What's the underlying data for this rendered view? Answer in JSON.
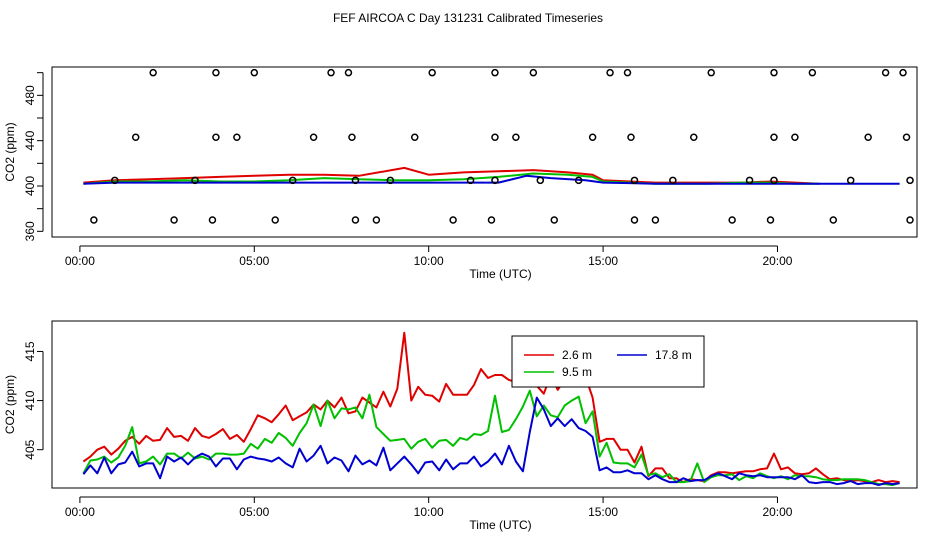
{
  "title": "FEF AIRCOA C  Day 131231  Calibrated Timeseries",
  "colors": {
    "red": "#e00000",
    "green": "#00c000",
    "blue": "#0000d0",
    "black": "#000000"
  },
  "chart_data": [
    {
      "type": "line",
      "name": "top-panel",
      "xlabel": "Time (UTC)",
      "ylabel": "CO2 (ppm)",
      "xlim": [
        -0.8,
        24.0
      ],
      "ylim": [
        355,
        505
      ],
      "x_ticks": [
        0,
        5,
        10,
        15,
        20
      ],
      "x_tick_labels": [
        "00:00",
        "05:00",
        "10:00",
        "15:00",
        "20:00"
      ],
      "y_ticks": [
        360,
        400,
        440,
        480
      ],
      "y_tick_labels": [
        "360",
        "400",
        "440",
        "480"
      ],
      "extra_y_ticks": [
        380,
        420,
        460,
        500
      ],
      "series": [
        {
          "name": "2.6 m",
          "color": "red",
          "x": [
            0.1,
            1.0,
            2.0,
            3.0,
            4.0,
            5.0,
            6.0,
            7.0,
            8.0,
            9.3,
            10.0,
            11.0,
            12.0,
            13.0,
            14.0,
            14.7,
            15.0,
            16.5,
            18.0,
            19.0,
            19.8,
            20.5,
            21.2
          ],
          "values": [
            403,
            405,
            406,
            407,
            408,
            409,
            410,
            410,
            409,
            416,
            410,
            412,
            413,
            414,
            412,
            410,
            405,
            403,
            403,
            403,
            404,
            403,
            402
          ]
        },
        {
          "name": "9.5 m",
          "color": "green",
          "x": [
            0.1,
            1.0,
            2.0,
            3.0,
            4.0,
            5.0,
            6.0,
            7.0,
            8.0,
            9.0,
            10.0,
            11.0,
            12.0,
            13.0,
            14.0,
            14.7,
            15.0,
            16.5,
            18.0,
            19.0,
            19.8,
            20.5,
            21.2
          ],
          "values": [
            402,
            404,
            404,
            405,
            404,
            404,
            405,
            407,
            406,
            405,
            405,
            406,
            408,
            411,
            410,
            408,
            404,
            402,
            402,
            403,
            403,
            402,
            402
          ]
        },
        {
          "name": "17.8 m",
          "color": "blue",
          "x": [
            0.1,
            1.0,
            2.0,
            3.0,
            4.0,
            5.0,
            6.0,
            7.0,
            8.0,
            9.0,
            10.0,
            11.0,
            12.0,
            12.8,
            13.5,
            14.5,
            15.0,
            16.5,
            18.0,
            19.0,
            20.0,
            21.0,
            22.0,
            23.5
          ],
          "values": [
            402,
            403,
            403,
            403,
            403,
            403,
            403,
            403,
            403,
            403,
            403,
            403,
            403,
            409,
            407,
            405,
            403,
            402,
            402,
            402,
            402,
            402,
            402,
            402
          ]
        }
      ],
      "calibration_points": {
        "name": "calibration standards",
        "x": [
          0.4,
          2.7,
          3.8,
          5.6,
          7.9,
          8.5,
          10.7,
          11.8,
          13.6,
          15.9,
          16.5,
          18.7,
          19.8,
          21.6,
          23.8,
          1.0,
          3.3,
          6.1,
          7.9,
          8.9,
          11.2,
          11.9,
          13.2,
          14.3,
          15.9,
          17.0,
          19.2,
          19.9,
          22.1,
          23.8,
          1.6,
          3.9,
          4.5,
          6.7,
          7.8,
          9.6,
          11.9,
          12.5,
          14.7,
          15.8,
          17.6,
          19.9,
          20.5,
          22.6,
          23.7,
          2.1,
          3.9,
          5.0,
          7.2,
          7.7,
          10.1,
          11.9,
          13.0,
          15.2,
          15.7,
          18.1,
          19.9,
          21.0,
          23.1,
          23.6
        ],
        "values": [
          370,
          370,
          370,
          370,
          370,
          370,
          370,
          370,
          370,
          370,
          370,
          370,
          370,
          370,
          370,
          405,
          405,
          405,
          405,
          405,
          405,
          405,
          405,
          405,
          405,
          405,
          405,
          405,
          405,
          405,
          443,
          443,
          443,
          443,
          443,
          443,
          443,
          443,
          443,
          443,
          443,
          443,
          443,
          443,
          443,
          500,
          500,
          500,
          500,
          500,
          500,
          500,
          500,
          500,
          500,
          500,
          500,
          500,
          500,
          500
        ]
      }
    },
    {
      "type": "line",
      "name": "bottom-panel",
      "xlabel": "Time (UTC)",
      "ylabel": "CO2 (ppm)",
      "xlim": [
        -0.8,
        24.0
      ],
      "ylim": [
        401.1,
        418.1
      ],
      "x_ticks": [
        0,
        5,
        10,
        15,
        20
      ],
      "x_tick_labels": [
        "00:00",
        "05:00",
        "10:00",
        "15:00",
        "20:00"
      ],
      "y_ticks": [
        405,
        410,
        415
      ],
      "y_tick_labels": [
        "405",
        "410",
        "415"
      ],
      "legend": {
        "position": "top-right-inset",
        "entries": [
          "2.6 m",
          "9.5 m",
          "17.8 m"
        ]
      },
      "series": [
        {
          "name": "2.6 m",
          "color": "red",
          "x": [
            0.1,
            0.3,
            0.5,
            0.7,
            0.9,
            1.1,
            1.3,
            1.5,
            1.7,
            1.9,
            2.1,
            2.3,
            2.5,
            2.7,
            2.9,
            3.1,
            3.3,
            3.5,
            3.7,
            3.9,
            4.1,
            4.3,
            4.5,
            4.7,
            4.9,
            5.1,
            5.3,
            5.5,
            5.7,
            5.9,
            6.1,
            6.3,
            6.5,
            6.7,
            6.9,
            7.1,
            7.3,
            7.5,
            7.7,
            7.9,
            8.1,
            8.3,
            8.5,
            8.7,
            8.9,
            9.1,
            9.3,
            9.5,
            9.7,
            9.9,
            10.1,
            10.3,
            10.5,
            10.7,
            10.9,
            11.1,
            11.3,
            11.5,
            11.7,
            11.9,
            12.1,
            12.3,
            12.5,
            12.7,
            12.9,
            13.1,
            13.3,
            13.5,
            13.7,
            13.9,
            14.1,
            14.3,
            14.5,
            14.7,
            14.9,
            15.1,
            15.3,
            15.5,
            15.7,
            15.9,
            16.1,
            16.3,
            16.5,
            16.7,
            16.9,
            17.1,
            17.3,
            17.5,
            17.7,
            17.9,
            18.1,
            18.3,
            18.5,
            18.7,
            18.9,
            19.1,
            19.3,
            19.5,
            19.7,
            19.9,
            20.1,
            20.3,
            20.5,
            20.7,
            20.9,
            21.1,
            21.3,
            21.5,
            21.7,
            21.9,
            22.1,
            22.3,
            22.5,
            22.7,
            22.9,
            23.1,
            23.3,
            23.5
          ],
          "values": [
            403.8,
            404.3,
            405.0,
            405.3,
            404.5,
            405.1,
            405.9,
            406.3,
            405.6,
            406.4,
            405.9,
            406.0,
            407.2,
            406.3,
            406.4,
            405.9,
            407.2,
            406.4,
            406.2,
            406.6,
            407.1,
            406.1,
            406.5,
            405.8,
            407.1,
            408.5,
            408.2,
            407.8,
            408.6,
            409.5,
            408.0,
            408.4,
            408.8,
            409.6,
            409.1,
            410.0,
            409.3,
            410.3,
            408.7,
            408.9,
            410.3,
            409.8,
            409.3,
            410.9,
            409.4,
            411.2,
            416.9,
            410.0,
            411.4,
            410.6,
            410.5,
            409.9,
            411.7,
            410.6,
            410.6,
            410.6,
            411.6,
            413.2,
            412.3,
            412.6,
            412.6,
            412.1,
            411.9,
            412.8,
            413.8,
            411.5,
            410.7,
            412.6,
            411.1,
            412.1,
            411.9,
            412.3,
            412.4,
            410.3,
            405.8,
            406.1,
            406.1,
            405.0,
            405.0,
            403.7,
            405.3,
            402.3,
            403.1,
            403.1,
            402.1,
            402.1,
            401.7,
            402.0,
            401.9,
            401.8,
            402.4,
            402.7,
            402.7,
            402.6,
            402.7,
            402.8,
            402.8,
            403.0,
            403.1,
            404.6,
            403.0,
            403.2,
            402.6,
            402.5,
            402.6,
            403.1,
            402.5,
            402.0,
            402.1,
            401.9,
            401.8,
            401.9,
            401.8,
            401.7,
            401.9,
            401.7,
            401.8,
            401.7
          ]
        },
        {
          "name": "9.5 m",
          "color": "green",
          "x": [
            0.1,
            0.3,
            0.5,
            0.7,
            0.9,
            1.1,
            1.3,
            1.5,
            1.7,
            1.9,
            2.1,
            2.3,
            2.5,
            2.7,
            2.9,
            3.1,
            3.3,
            3.5,
            3.7,
            3.9,
            4.1,
            4.3,
            4.5,
            4.7,
            4.9,
            5.1,
            5.3,
            5.5,
            5.7,
            5.9,
            6.1,
            6.3,
            6.5,
            6.7,
            6.9,
            7.1,
            7.3,
            7.5,
            7.7,
            7.9,
            8.1,
            8.3,
            8.5,
            8.7,
            8.9,
            9.1,
            9.3,
            9.5,
            9.7,
            9.9,
            10.1,
            10.3,
            10.5,
            10.7,
            10.9,
            11.1,
            11.3,
            11.5,
            11.7,
            11.9,
            12.1,
            12.3,
            12.5,
            12.7,
            12.9,
            13.1,
            13.3,
            13.5,
            13.7,
            13.9,
            14.1,
            14.3,
            14.5,
            14.7,
            14.9,
            15.1,
            15.3,
            15.5,
            15.7,
            15.9,
            16.1,
            16.3,
            16.5,
            16.7,
            16.9,
            17.1,
            17.3,
            17.5,
            17.7,
            17.9,
            18.1,
            18.3,
            18.5,
            18.7,
            18.9,
            19.1,
            19.3,
            19.5,
            19.7,
            19.9,
            20.1,
            20.3,
            20.5,
            20.7,
            20.9,
            21.1,
            21.3,
            21.5,
            21.7,
            21.9,
            22.1,
            22.3,
            22.5,
            22.7,
            22.9,
            23.1,
            23.3,
            23.5
          ],
          "values": [
            402.6,
            403.9,
            404.0,
            404.3,
            403.7,
            404.2,
            405.4,
            407.3,
            403.6,
            403.8,
            404.3,
            403.5,
            404.6,
            404.6,
            404.1,
            404.7,
            404.1,
            404.3,
            404.0,
            404.6,
            404.6,
            404.5,
            404.5,
            404.6,
            405.6,
            405.1,
            406.1,
            405.7,
            406.7,
            406.2,
            405.4,
            406.7,
            407.7,
            409.6,
            407.4,
            410.0,
            408.2,
            409.2,
            409.1,
            409.3,
            408.2,
            410.6,
            407.3,
            406.6,
            405.9,
            406.0,
            406.1,
            405.1,
            405.8,
            406.1,
            405.2,
            405.9,
            406.0,
            405.4,
            406.2,
            406.0,
            406.6,
            406.5,
            406.9,
            410.5,
            406.8,
            407.0,
            408.1,
            409.4,
            411.0,
            408.4,
            409.5,
            408.5,
            408.3,
            409.5,
            410.0,
            410.4,
            407.7,
            408.9,
            404.3,
            405.7,
            403.7,
            403.6,
            403.6,
            403.2,
            404.5,
            402.4,
            402.6,
            402.2,
            402.5,
            401.7,
            401.7,
            401.8,
            403.6,
            401.7,
            402.2,
            402.4,
            402.4,
            402.5,
            401.9,
            402.3,
            402.1,
            402.6,
            402.3,
            402.1,
            402.3,
            402.0,
            402.4,
            402.3,
            402.3,
            402.2,
            402.0,
            401.9,
            401.9,
            402.0,
            402.0,
            402.0,
            401.9,
            401.7,
            401.5,
            401.5,
            401.4,
            401.6
          ]
        },
        {
          "name": "17.8 m",
          "color": "blue",
          "x": [
            0.1,
            0.3,
            0.5,
            0.7,
            0.9,
            1.1,
            1.3,
            1.5,
            1.7,
            1.9,
            2.1,
            2.3,
            2.5,
            2.7,
            2.9,
            3.1,
            3.3,
            3.5,
            3.7,
            3.9,
            4.1,
            4.3,
            4.5,
            4.7,
            4.9,
            5.1,
            5.3,
            5.5,
            5.7,
            5.9,
            6.1,
            6.3,
            6.5,
            6.7,
            6.9,
            7.1,
            7.3,
            7.5,
            7.7,
            7.9,
            8.1,
            8.3,
            8.5,
            8.7,
            8.9,
            9.1,
            9.3,
            9.5,
            9.7,
            9.9,
            10.1,
            10.3,
            10.5,
            10.7,
            10.9,
            11.1,
            11.3,
            11.5,
            11.7,
            11.9,
            12.1,
            12.3,
            12.5,
            12.7,
            12.9,
            13.1,
            13.3,
            13.5,
            13.7,
            13.9,
            14.1,
            14.3,
            14.5,
            14.7,
            14.9,
            15.1,
            15.3,
            15.5,
            15.7,
            15.9,
            16.1,
            16.3,
            16.5,
            16.7,
            16.9,
            17.1,
            17.3,
            17.5,
            17.7,
            17.9,
            18.1,
            18.3,
            18.5,
            18.7,
            18.9,
            19.1,
            19.3,
            19.5,
            19.7,
            19.9,
            20.1,
            20.3,
            20.5,
            20.7,
            20.9,
            21.1,
            21.3,
            21.5,
            21.7,
            21.9,
            22.1,
            22.3,
            22.5,
            22.7,
            22.9,
            23.1,
            23.3,
            23.5
          ],
          "values": [
            402.5,
            403.4,
            402.6,
            404.2,
            402.6,
            403.5,
            403.7,
            404.8,
            403.3,
            403.6,
            403.6,
            402.1,
            404.3,
            403.8,
            404.2,
            403.5,
            404.2,
            404.6,
            404.3,
            403.3,
            404.1,
            404.1,
            403.0,
            404.0,
            404.3,
            404.1,
            404.0,
            403.8,
            404.2,
            403.6,
            403.2,
            405.1,
            403.8,
            404.4,
            405.4,
            403.6,
            404.2,
            403.9,
            402.8,
            404.4,
            403.5,
            403.9,
            403.4,
            405.2,
            402.9,
            403.6,
            404.3,
            403.5,
            402.6,
            403.7,
            403.8,
            402.9,
            404.0,
            403.0,
            403.6,
            403.6,
            404.3,
            403.3,
            403.8,
            404.6,
            403.5,
            405.4,
            403.8,
            402.8,
            406.8,
            410.3,
            409.1,
            407.4,
            408.2,
            407.4,
            408.1,
            407.2,
            406.9,
            406.3,
            402.9,
            403.2,
            402.7,
            402.7,
            402.9,
            402.6,
            402.6,
            402.0,
            402.4,
            402.0,
            401.7,
            401.7,
            402.1,
            401.8,
            401.9,
            401.9,
            402.3,
            402.6,
            402.3,
            402.0,
            402.6,
            402.4,
            402.3,
            402.4,
            402.2,
            402.2,
            402.2,
            402.2,
            402.0,
            402.4,
            401.7,
            401.6,
            401.7,
            401.7,
            401.5,
            401.6,
            401.8,
            401.5,
            401.6,
            401.6,
            401.4,
            401.6,
            401.5,
            401.6
          ]
        }
      ]
    }
  ]
}
